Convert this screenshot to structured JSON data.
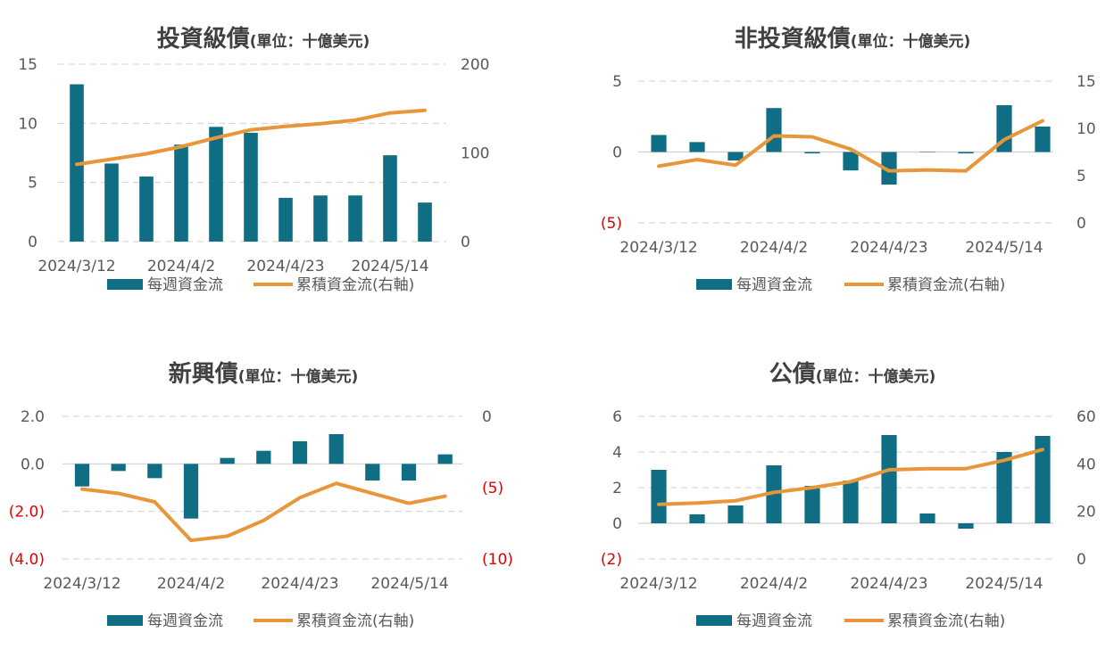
{
  "colors": {
    "bar": "#0f6e84",
    "line": "#e8963a",
    "grid": "#d0d0d0",
    "negative_tick": "#e00000",
    "text": "#404040"
  },
  "legend": {
    "bar_label": "每週資金流",
    "line_label": "累積資金流(右軸)"
  },
  "chart_data": [
    {
      "type": "bar+line",
      "title": "投資級債",
      "subtitle": "(單位：十億美元)",
      "x_tick_labels": [
        "2024/3/12",
        "2024/4/2",
        "2024/4/23",
        "2024/5/14"
      ],
      "y_left": {
        "min": 0,
        "max": 15,
        "ticks": [
          0,
          5,
          10,
          15
        ],
        "tick_labels": [
          "0",
          "5",
          "10",
          "15"
        ]
      },
      "y_right": {
        "min": 0,
        "max": 200,
        "ticks": [
          0,
          100,
          200
        ],
        "tick_labels": [
          "0",
          "100",
          "200"
        ]
      },
      "series": [
        {
          "name": "每週資金流",
          "axis": "left",
          "values": [
            13.3,
            6.6,
            5.5,
            8.2,
            9.7,
            9.2,
            3.7,
            3.9,
            3.9,
            7.3,
            3.3
          ]
        },
        {
          "name": "累積資金流(右軸)",
          "axis": "right",
          "values": [
            87,
            93,
            99,
            107,
            117,
            126,
            130,
            133,
            137,
            145,
            148
          ]
        }
      ],
      "grid": true,
      "legend_position": "bottom"
    },
    {
      "type": "bar+line",
      "title": "非投資級債",
      "subtitle": "(單位：十億美元)",
      "x_tick_labels": [
        "2024/3/12",
        "2024/4/2",
        "2024/4/23",
        "2024/5/14"
      ],
      "y_left": {
        "min": -5,
        "max": 5,
        "ticks": [
          -5,
          0,
          5
        ],
        "tick_labels": [
          "(5)",
          "0",
          "5"
        ]
      },
      "y_right": {
        "min": 0,
        "max": 15,
        "ticks": [
          0,
          5,
          10,
          15
        ],
        "tick_labels": [
          "0",
          "5",
          "10",
          "15"
        ]
      },
      "series": [
        {
          "name": "每週資金流",
          "axis": "left",
          "values": [
            1.2,
            0.7,
            -0.6,
            3.1,
            -0.1,
            -1.3,
            -2.3,
            0.0,
            -0.1,
            3.3,
            1.8
          ]
        },
        {
          "name": "累積資金流(右軸)",
          "axis": "right",
          "values": [
            6.0,
            6.7,
            6.1,
            9.2,
            9.1,
            7.8,
            5.5,
            5.6,
            5.5,
            8.8,
            10.8
          ]
        }
      ],
      "grid": true,
      "legend_position": "bottom"
    },
    {
      "type": "bar+line",
      "title": "新興債",
      "subtitle": "(單位：十億美元)",
      "x_tick_labels": [
        "2024/3/12",
        "2024/4/2",
        "2024/4/23",
        "2024/5/14"
      ],
      "y_left": {
        "min": -4,
        "max": 2,
        "ticks": [
          -4,
          -2,
          0,
          2
        ],
        "tick_labels": [
          "(4.0)",
          "(2.0)",
          "0.0",
          "2.0"
        ]
      },
      "y_right": {
        "min": -10,
        "max": 0,
        "ticks": [
          -10,
          -5,
          0
        ],
        "tick_labels": [
          "(10)",
          "(5)",
          "0"
        ]
      },
      "series": [
        {
          "name": "每週資金流",
          "axis": "left",
          "values": [
            -0.95,
            -0.3,
            -0.6,
            -2.3,
            0.25,
            0.55,
            0.95,
            1.25,
            -0.7,
            -0.7,
            0.4
          ]
        },
        {
          "name": "累積資金流(右軸)",
          "axis": "right",
          "values": [
            -5.1,
            -5.4,
            -6.0,
            -8.7,
            -8.4,
            -7.3,
            -5.7,
            -4.7,
            -5.4,
            -6.1,
            -5.6
          ]
        }
      ],
      "grid": true,
      "legend_position": "bottom"
    },
    {
      "type": "bar+line",
      "title": "公債",
      "subtitle": "(單位：十億美元)",
      "x_tick_labels": [
        "2024/3/12",
        "2024/4/2",
        "2024/4/23",
        "2024/5/14"
      ],
      "y_left": {
        "min": -2,
        "max": 6,
        "ticks": [
          -2,
          0,
          2,
          4,
          6
        ],
        "tick_labels": [
          "(2)",
          "0",
          "2",
          "4",
          "6"
        ]
      },
      "y_right": {
        "min": 0,
        "max": 60,
        "ticks": [
          0,
          20,
          40,
          60
        ],
        "tick_labels": [
          "0",
          "20",
          "40",
          "60"
        ]
      },
      "series": [
        {
          "name": "每週資金流",
          "axis": "left",
          "values": [
            3.0,
            0.5,
            1.0,
            3.25,
            2.1,
            2.4,
            4.95,
            0.55,
            -0.3,
            4.0,
            4.9
          ]
        },
        {
          "name": "累積資金流(右軸)",
          "axis": "right",
          "values": [
            23,
            23.5,
            24.5,
            28,
            30,
            32.5,
            37.5,
            38,
            38,
            41.5,
            46
          ]
        }
      ],
      "grid": true,
      "legend_position": "bottom"
    }
  ]
}
